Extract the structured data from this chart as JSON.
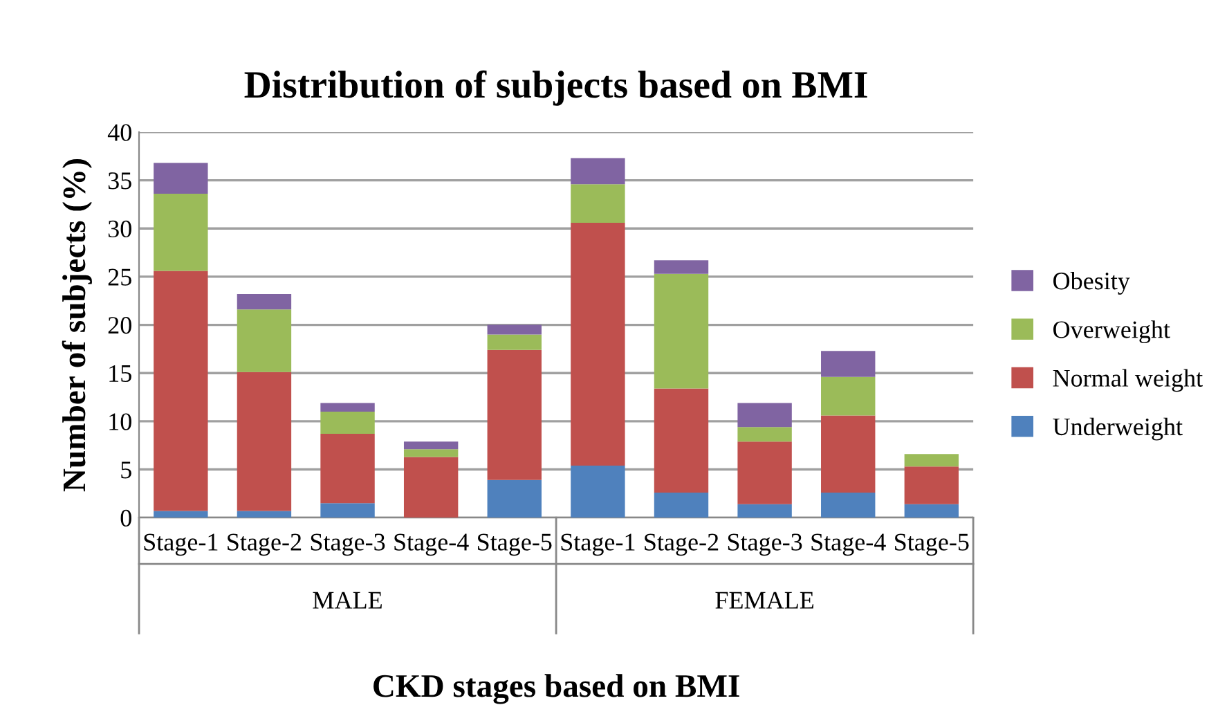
{
  "chart_data": {
    "type": "bar",
    "stacked": true,
    "title": "Distribution of subjects based on BMI",
    "xlabel": "CKD stages based on BMI",
    "ylabel": "Number of subjects (%)",
    "categories": [
      "Stage-1",
      "Stage-2",
      "Stage-3",
      "Stage-4",
      "Stage-5",
      "Stage-1",
      "Stage-2",
      "Stage-3",
      "Stage-4",
      "Stage-5"
    ],
    "annotations": [
      "MALE",
      "FEMALE"
    ],
    "series": [
      {
        "name": "Underweight",
        "color": "#4f81bd",
        "values": [
          0.7,
          0.7,
          1.5,
          0,
          3.9,
          5.4,
          2.6,
          1.4,
          2.6,
          1.4
        ]
      },
      {
        "name": "Normal weight",
        "color": "#c0504d",
        "values": [
          24.9,
          14.4,
          7.2,
          6.3,
          13.5,
          25.2,
          10.8,
          6.5,
          8.0,
          3.9
        ]
      },
      {
        "name": "Overweight",
        "color": "#9bbb59",
        "values": [
          8.0,
          6.5,
          2.3,
          0.8,
          1.6,
          4.0,
          11.9,
          1.5,
          4.0,
          1.3
        ]
      },
      {
        "name": "Obesity",
        "color": "#8064a2",
        "values": [
          3.2,
          1.6,
          0.9,
          0.8,
          1.0,
          2.7,
          1.4,
          2.5,
          2.7,
          0
        ]
      }
    ],
    "ylim": [
      0,
      40
    ],
    "yticks": [
      0,
      5,
      10,
      15,
      20,
      25,
      30,
      35,
      40
    ],
    "grid": "y",
    "legend": "right"
  }
}
